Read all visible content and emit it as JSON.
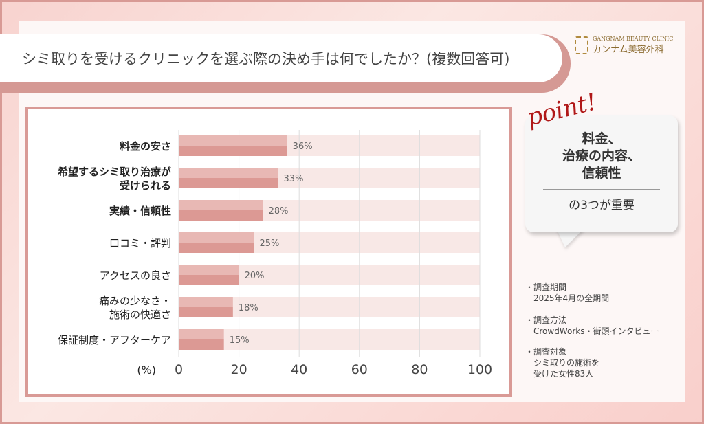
{
  "title": "シミ取りを受けるクリニックを選ぶ際の決め手は何でしたか？(複数回答可)",
  "logo": {
    "en": "GANGNAM BEAUTY CLINIC",
    "jp": "カンナム美容外科"
  },
  "point": {
    "label": "point!",
    "main": "料金、\n治療の内容、\n信頼性",
    "sub": "の3つが重要"
  },
  "notes": [
    {
      "head": "調査期間",
      "body": "2025年4月の全期間"
    },
    {
      "head": "調査方法",
      "body": "CrowdWorks・街頭インタビュー"
    },
    {
      "head": "調査対象",
      "body": "シミ取りの施術を\n受けた女性83人"
    }
  ],
  "colors": {
    "bar_top": "#e8b8b4",
    "bar_bottom": "#dc9994",
    "track": "#f8e8e6",
    "frame": "#d99a96"
  },
  "chart_data": {
    "type": "bar",
    "orientation": "horizontal",
    "categories": [
      "料金の安さ",
      "希望するシミ取り治療が\n受けられる",
      "実績・信頼性",
      "口コミ・評判",
      "アクセスの良さ",
      "痛みの少なさ・\n施術の快適さ",
      "保証制度・アフターケア"
    ],
    "bold": [
      true,
      true,
      true,
      false,
      false,
      false,
      false
    ],
    "values": [
      36,
      33,
      28,
      25,
      20,
      18,
      15
    ],
    "value_labels": [
      "36%",
      "33%",
      "28%",
      "25%",
      "20%",
      "18%",
      "15%"
    ],
    "xlim": [
      0,
      100
    ],
    "xticks": [
      "0",
      "20",
      "40",
      "60",
      "80",
      "100"
    ],
    "xlabel": "(%)",
    "grid": true
  }
}
